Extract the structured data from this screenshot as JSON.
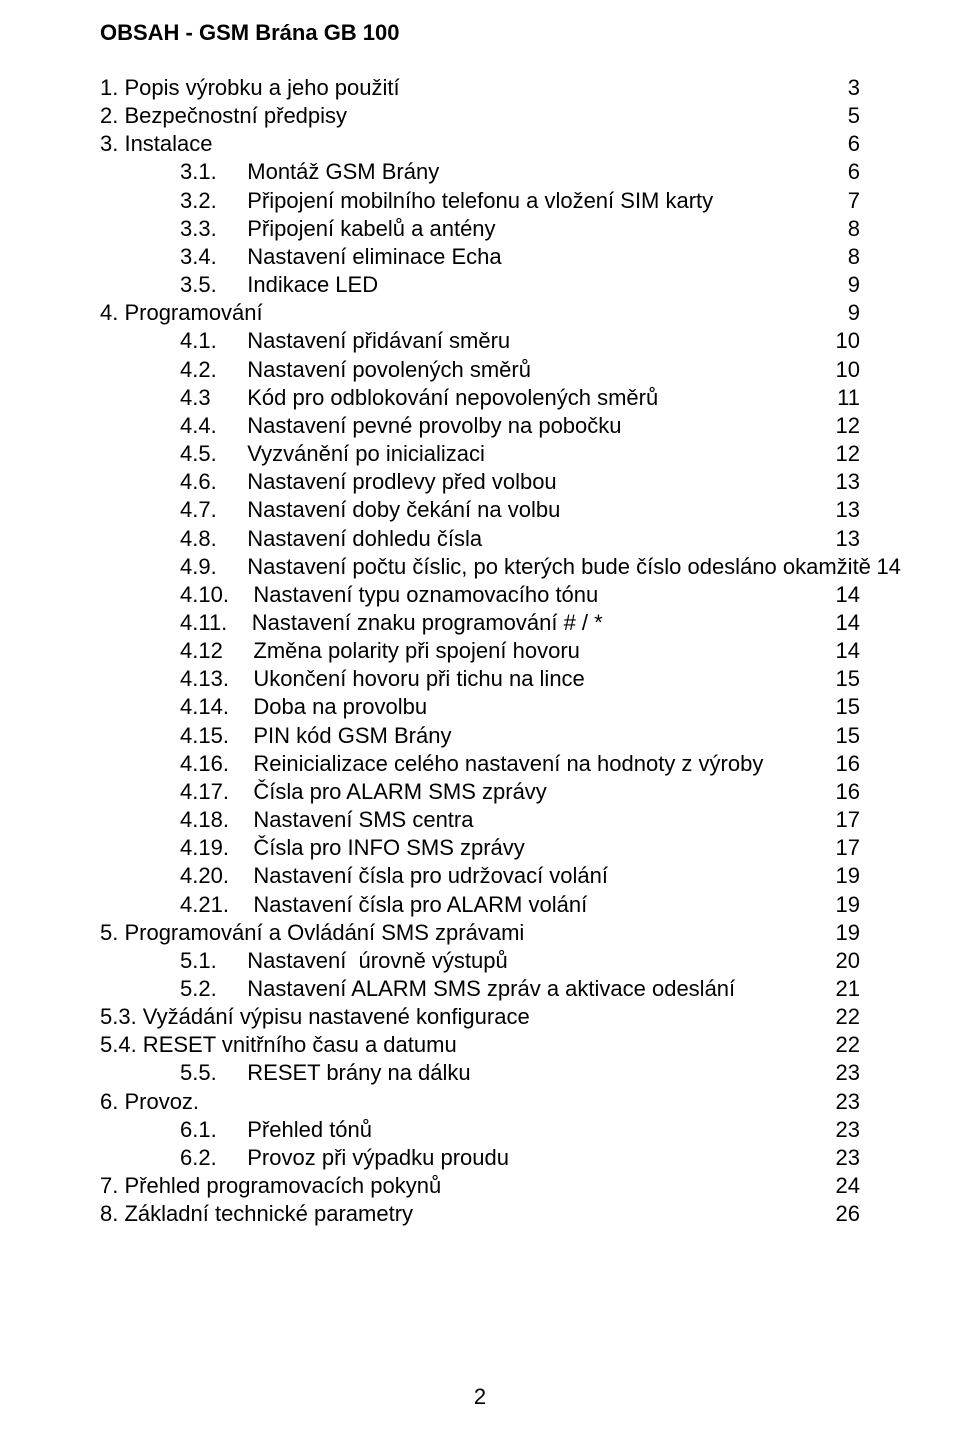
{
  "title": "OBSAH - GSM Brána GB 100",
  "page_number": "2",
  "font_family": "Arial",
  "font_size_pt": 16,
  "text_color": "#000000",
  "background_color": "#ffffff",
  "toc": [
    {
      "indent": 0,
      "num": "1.",
      "text": "Popis výrobku a jeho použití",
      "page": "3"
    },
    {
      "indent": 0,
      "num": "2.",
      "text": "Bezpečnostní předpisy",
      "page": "5"
    },
    {
      "indent": 0,
      "num": "3.",
      "text": "Instalace",
      "page": "6"
    },
    {
      "indent": 1,
      "num": "3.1.",
      "text": "Montáž GSM Brány",
      "page": "6"
    },
    {
      "indent": 1,
      "num": "3.2.",
      "text": "Připojení mobilního telefonu a vložení SIM karty",
      "page": "7"
    },
    {
      "indent": 1,
      "num": "3.3.",
      "text": "Připojení kabelů a antény",
      "page": "8"
    },
    {
      "indent": 1,
      "num": "3.4.",
      "text": "Nastavení eliminace Echa",
      "page": "8"
    },
    {
      "indent": 1,
      "num": "3.5.",
      "text": "Indikace LED",
      "page": "9"
    },
    {
      "indent": 0,
      "num": "4.",
      "text": "Programování",
      "page": "9"
    },
    {
      "indent": 1,
      "num": "4.1.",
      "text": "Nastavení přidávaní směru",
      "page": "10"
    },
    {
      "indent": 1,
      "num": "4.2.",
      "text": "Nastavení povolených směrů",
      "page": "10"
    },
    {
      "indent": 1,
      "num": "4.3",
      "text": "Kód pro odblokování nepovolených směrů",
      "page": "11"
    },
    {
      "indent": 1,
      "num": "4.4.",
      "text": "Nastavení pevné provolby na pobočku",
      "page": "12"
    },
    {
      "indent": 1,
      "num": "4.5.",
      "text": "Vyzvánění po inicializaci",
      "page": "12"
    },
    {
      "indent": 1,
      "num": "4.6.",
      "text": "Nastavení prodlevy před volbou",
      "page": "13"
    },
    {
      "indent": 1,
      "num": "4.7.",
      "text": "Nastavení doby čekání na volbu",
      "page": "13"
    },
    {
      "indent": 1,
      "num": "4.8.",
      "text": "Nastavení dohledu čísla",
      "page": "13"
    },
    {
      "indent": 1,
      "num": "4.9.",
      "text": "Nastavení počtu číslic, po kterých bude číslo odesláno okamžitě",
      "page": "14"
    },
    {
      "indent": 1,
      "num": "4.10.",
      "text": "Nastavení typu oznamovacího tónu",
      "page": "14"
    },
    {
      "indent": 1,
      "num": "4.11.",
      "text": "Nastavení znaku programování # / *",
      "page": "14"
    },
    {
      "indent": 1,
      "num": "4.12",
      "text": "Změna polarity při spojení hovoru",
      "page": "14"
    },
    {
      "indent": 1,
      "num": "4.13.",
      "text": "Ukončení hovoru při tichu na lince",
      "page": "15"
    },
    {
      "indent": 1,
      "num": "4.14.",
      "text": "Doba na provolbu",
      "page": "15"
    },
    {
      "indent": 1,
      "num": "4.15.",
      "text": "PIN kód GSM Brány",
      "page": "15"
    },
    {
      "indent": 1,
      "num": "4.16.",
      "text": "Reinicializace celého nastavení na hodnoty z výroby",
      "page": "16"
    },
    {
      "indent": 1,
      "num": "4.17.",
      "text": "Čísla pro ALARM SMS zprávy",
      "page": "16"
    },
    {
      "indent": 1,
      "num": "4.18.",
      "text": "Nastavení SMS centra",
      "page": "17"
    },
    {
      "indent": 1,
      "num": "4.19.",
      "text": "Čísla pro INFO SMS zprávy",
      "page": "17"
    },
    {
      "indent": 1,
      "num": "4.20.",
      "text": "Nastavení čísla pro udržovací volání",
      "page": "19"
    },
    {
      "indent": 1,
      "num": "4.21.",
      "text": "Nastavení čísla pro ALARM volání",
      "page": "19"
    },
    {
      "indent": 0,
      "num": "5.",
      "text": "Programování a Ovládání SMS zprávami",
      "page": "19"
    },
    {
      "indent": 1,
      "num": "5.1.",
      "text": "Nastavení  úrovně výstupů",
      "page": "20"
    },
    {
      "indent": 1,
      "num": "5.2.",
      "text": "Nastavení ALARM SMS zpráv a aktivace odeslání",
      "page": "21"
    },
    {
      "indent": 0,
      "num": "5.3.",
      "text": "Vyžádání výpisu nastavené konfigurace",
      "page": "22"
    },
    {
      "indent": 0,
      "num": "5.4.",
      "text": "RESET vnitřního času a datumu",
      "page": "22"
    },
    {
      "indent": 1,
      "num": "5.5.",
      "text": "RESET brány na dálku",
      "page": "23"
    },
    {
      "indent": 0,
      "num": "6.",
      "text": "Provoz.",
      "page": "23"
    },
    {
      "indent": 1,
      "num": "6.1.",
      "text": "Přehled tónů",
      "page": "23"
    },
    {
      "indent": 1,
      "num": "6.2.",
      "text": "Provoz při výpadku proudu",
      "page": "23"
    },
    {
      "indent": 0,
      "num": "7.",
      "text": "Přehled programovacích pokynů",
      "page": "24"
    },
    {
      "indent": 0,
      "num": "8.",
      "text": "Základní technické parametry",
      "page": "26"
    }
  ]
}
